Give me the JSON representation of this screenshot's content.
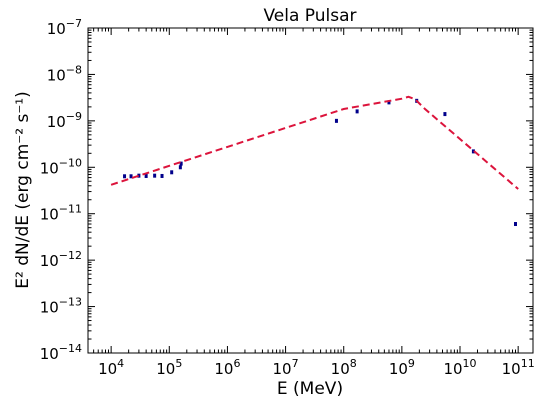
{
  "chart_data": {
    "type": "scatter",
    "title": "Vela Pulsar",
    "xlabel": "E (MeV)",
    "ylabel": "E² dN/dE (erg cm⁻² s⁻¹)",
    "x_scale": "log",
    "y_scale": "log",
    "xlim": [
      4000,
      180000000000
    ],
    "ylim": [
      1e-14,
      1e-07
    ],
    "x_ticks": [
      {
        "value": 10000,
        "mant": "10",
        "exp": "4"
      },
      {
        "value": 100000,
        "mant": "10",
        "exp": "5"
      },
      {
        "value": 1000000,
        "mant": "10",
        "exp": "6"
      },
      {
        "value": 10000000,
        "mant": "10",
        "exp": "7"
      },
      {
        "value": 100000000,
        "mant": "10",
        "exp": "8"
      },
      {
        "value": 1000000000,
        "mant": "10",
        "exp": "9"
      },
      {
        "value": 10000000000,
        "mant": "10",
        "exp": "10"
      },
      {
        "value": 100000000000,
        "mant": "10",
        "exp": "11"
      }
    ],
    "y_ticks": [
      {
        "value": 1e-14,
        "mant": "10",
        "exp": "−14"
      },
      {
        "value": 1e-13,
        "mant": "10",
        "exp": "−13"
      },
      {
        "value": 1e-12,
        "mant": "10",
        "exp": "−12"
      },
      {
        "value": 1e-11,
        "mant": "10",
        "exp": "−11"
      },
      {
        "value": 1e-10,
        "mant": "10",
        "exp": "−10"
      },
      {
        "value": 1e-09,
        "mant": "10",
        "exp": "−9"
      },
      {
        "value": 1e-08,
        "mant": "10",
        "exp": "−8"
      },
      {
        "value": 1e-07,
        "mant": "10",
        "exp": "−7"
      }
    ],
    "grid": false,
    "series": [
      {
        "kind": "points",
        "color": "#00008b",
        "x": [
          17000,
          22000,
          30000,
          40000,
          56000,
          75000,
          110000,
          155000,
          160000,
          75000000,
          170000000,
          600000000,
          1800000000,
          5500000000,
          17000000000,
          90000000000
        ],
        "y": [
          6.4e-11,
          6.4e-11,
          6.6e-11,
          6.5e-11,
          6.6e-11,
          6.5e-11,
          7.8e-11,
          1e-10,
          1.2e-10,
          1e-09,
          1.6e-09,
          2.5e-09,
          2.7e-09,
          1.4e-09,
          2.2e-10,
          6e-12
        ]
      },
      {
        "kind": "fit-line",
        "color": "#dc143c",
        "style": "dashed",
        "x": [
          10000,
          1000000,
          100000000,
          1000000000,
          1300000000,
          1700000000,
          2500000000,
          100000000000
        ],
        "y": [
          4.2e-11,
          2.75e-10,
          1.8e-09,
          3e-09,
          3.3e-09,
          2.9e-09,
          1.8e-09,
          3.4e-11
        ]
      }
    ]
  }
}
